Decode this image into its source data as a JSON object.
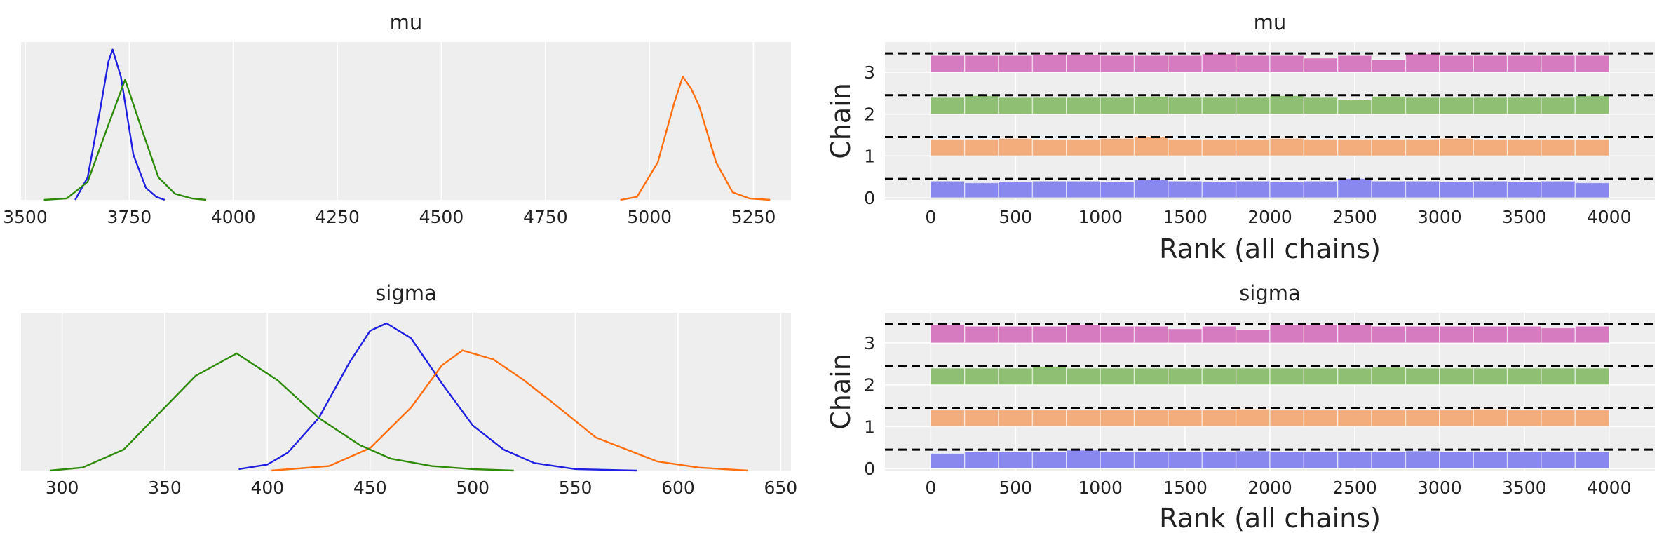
{
  "colors": {
    "panel_bg": "#eeeeee",
    "grid": "#ffffff",
    "chain_0": "#1f1fe0",
    "chain_1": "#ff6f0f",
    "chain_2": "#2e8b0a",
    "chain_3": "#cc44aa",
    "rank_0": "#8888ee",
    "rank_1": "#f3ad7c",
    "rank_2": "#8fbf72",
    "rank_3": "#d67bbf",
    "mean_line": "#000000"
  },
  "chart_data": [
    {
      "type": "line",
      "title": "mu",
      "xlim": [
        3490,
        5340
      ],
      "xticks": [
        3500,
        3750,
        4000,
        4250,
        4500,
        4750,
        5000,
        5250
      ],
      "xtick_labels": [
        "3500",
        "3750",
        "4000",
        "4250",
        "4500",
        "4750",
        "5000",
        "5250"
      ],
      "ylim": [
        0,
        1.05
      ],
      "grid": true,
      "series": [
        {
          "chain": 0,
          "x": [
            3620,
            3650,
            3680,
            3700,
            3710,
            3730,
            3760,
            3790,
            3815,
            3835
          ],
          "y": [
            0.0,
            0.15,
            0.6,
            0.92,
            1.0,
            0.82,
            0.3,
            0.08,
            0.02,
            0.0
          ]
        },
        {
          "chain": 1,
          "x": [
            4930,
            4970,
            5020,
            5060,
            5080,
            5100,
            5120,
            5160,
            5200,
            5240,
            5290
          ],
          "y": [
            0.0,
            0.02,
            0.25,
            0.65,
            0.82,
            0.74,
            0.62,
            0.25,
            0.05,
            0.01,
            0.0
          ]
        },
        {
          "chain": 2,
          "x": [
            3545,
            3600,
            3650,
            3700,
            3740,
            3780,
            3820,
            3860,
            3900,
            3935
          ],
          "y": [
            0.0,
            0.01,
            0.12,
            0.5,
            0.8,
            0.47,
            0.15,
            0.04,
            0.01,
            0.0
          ]
        }
      ]
    },
    {
      "type": "bar",
      "title": "mu",
      "xlabel": "Rank (all chains)",
      "ylabel": "Chain",
      "xlim": [
        -270,
        4270
      ],
      "xticks": [
        0,
        500,
        1000,
        1500,
        2000,
        2500,
        3000,
        3500,
        4000
      ],
      "xtick_labels": [
        "0",
        "500",
        "1000",
        "1500",
        "2000",
        "2500",
        "3000",
        "3500",
        "4000"
      ],
      "yticks": [
        0,
        1,
        2,
        3
      ],
      "ytick_labels": [
        "0",
        "1",
        "2",
        "3"
      ],
      "ylim": [
        -0.05,
        3.72
      ],
      "n_bins": 20,
      "bin_width": 200,
      "chains": [
        {
          "chain": 0,
          "heights": [
            1.0,
            0.9,
            0.95,
            1.0,
            1.0,
            0.95,
            1.1,
            1.0,
            0.95,
            1.0,
            0.95,
            1.0,
            1.15,
            1.0,
            1.0,
            0.95,
            1.0,
            0.95,
            1.0,
            0.9
          ]
        },
        {
          "chain": 1,
          "heights": [
            1.0,
            1.0,
            1.05,
            1.0,
            1.0,
            1.05,
            1.15,
            1.0,
            1.0,
            1.0,
            1.05,
            1.0,
            1.0,
            1.0,
            1.0,
            1.05,
            1.0,
            1.0,
            1.0,
            1.0
          ]
        },
        {
          "chain": 2,
          "heights": [
            1.0,
            1.1,
            1.0,
            1.0,
            1.0,
            1.0,
            1.05,
            1.0,
            1.0,
            1.0,
            1.1,
            1.0,
            0.85,
            1.05,
            1.0,
            1.0,
            1.0,
            1.0,
            1.0,
            1.1
          ]
        },
        {
          "chain": 3,
          "heights": [
            1.0,
            1.0,
            1.0,
            1.05,
            1.05,
            1.0,
            1.0,
            1.0,
            1.1,
            1.0,
            1.0,
            0.85,
            1.0,
            0.75,
            1.1,
            1.0,
            1.0,
            1.0,
            1.0,
            1.0
          ]
        }
      ]
    },
    {
      "type": "line",
      "title": "sigma",
      "xlim": [
        280,
        655
      ],
      "xticks": [
        300,
        350,
        400,
        450,
        500,
        550,
        600,
        650
      ],
      "xtick_labels": [
        "300",
        "350",
        "400",
        "450",
        "500",
        "550",
        "600",
        "650"
      ],
      "ylim": [
        0,
        1.05
      ],
      "grid": true,
      "series": [
        {
          "chain": 0,
          "x": [
            386,
            400,
            410,
            425,
            440,
            450,
            458,
            470,
            485,
            500,
            515,
            530,
            550,
            580
          ],
          "y": [
            0.01,
            0.04,
            0.12,
            0.35,
            0.72,
            0.93,
            0.98,
            0.88,
            0.58,
            0.3,
            0.14,
            0.05,
            0.01,
            0.0
          ]
        },
        {
          "chain": 1,
          "x": [
            402,
            430,
            450,
            470,
            485,
            495,
            510,
            525,
            540,
            560,
            590,
            610,
            634
          ],
          "y": [
            0.0,
            0.03,
            0.15,
            0.42,
            0.7,
            0.8,
            0.74,
            0.6,
            0.44,
            0.22,
            0.06,
            0.02,
            0.0
          ]
        },
        {
          "chain": 2,
          "x": [
            294,
            310,
            330,
            350,
            365,
            385,
            405,
            425,
            445,
            460,
            480,
            500,
            520
          ],
          "y": [
            0.0,
            0.02,
            0.14,
            0.42,
            0.63,
            0.78,
            0.6,
            0.35,
            0.17,
            0.08,
            0.03,
            0.01,
            0.0
          ]
        }
      ]
    },
    {
      "type": "bar",
      "title": "sigma",
      "xlabel": "Rank (all chains)",
      "ylabel": "Chain",
      "xlim": [
        -270,
        4270
      ],
      "xticks": [
        0,
        500,
        1000,
        1500,
        2000,
        2500,
        3000,
        3500,
        4000
      ],
      "xtick_labels": [
        "0",
        "500",
        "1000",
        "1500",
        "2000",
        "2500",
        "3000",
        "3500",
        "4000"
      ],
      "yticks": [
        0,
        1,
        2,
        3
      ],
      "ytick_labels": [
        "0",
        "1",
        "2",
        "3"
      ],
      "ylim": [
        -0.05,
        3.72
      ],
      "n_bins": 20,
      "bin_width": 200,
      "chains": [
        {
          "chain": 0,
          "heights": [
            0.9,
            1.0,
            1.0,
            1.0,
            1.1,
            1.0,
            1.0,
            1.0,
            1.0,
            1.05,
            1.0,
            1.0,
            1.0,
            1.0,
            1.05,
            1.0,
            1.0,
            1.0,
            1.0,
            1.0
          ]
        },
        {
          "chain": 1,
          "heights": [
            1.0,
            1.0,
            1.0,
            1.0,
            1.0,
            1.0,
            1.0,
            1.0,
            1.0,
            1.05,
            1.0,
            1.0,
            1.0,
            1.0,
            1.0,
            1.0,
            1.05,
            1.0,
            1.0,
            1.0
          ]
        },
        {
          "chain": 2,
          "heights": [
            1.0,
            1.0,
            1.0,
            1.1,
            1.0,
            1.0,
            1.0,
            1.0,
            1.0,
            1.0,
            1.0,
            1.0,
            1.0,
            1.05,
            1.0,
            1.0,
            1.0,
            1.0,
            1.0,
            1.0
          ]
        },
        {
          "chain": 3,
          "heights": [
            1.1,
            1.0,
            1.0,
            1.0,
            1.1,
            1.0,
            1.0,
            0.85,
            1.0,
            0.8,
            1.1,
            1.1,
            1.1,
            1.0,
            1.0,
            1.0,
            1.0,
            1.0,
            0.9,
            1.0
          ]
        }
      ]
    }
  ]
}
